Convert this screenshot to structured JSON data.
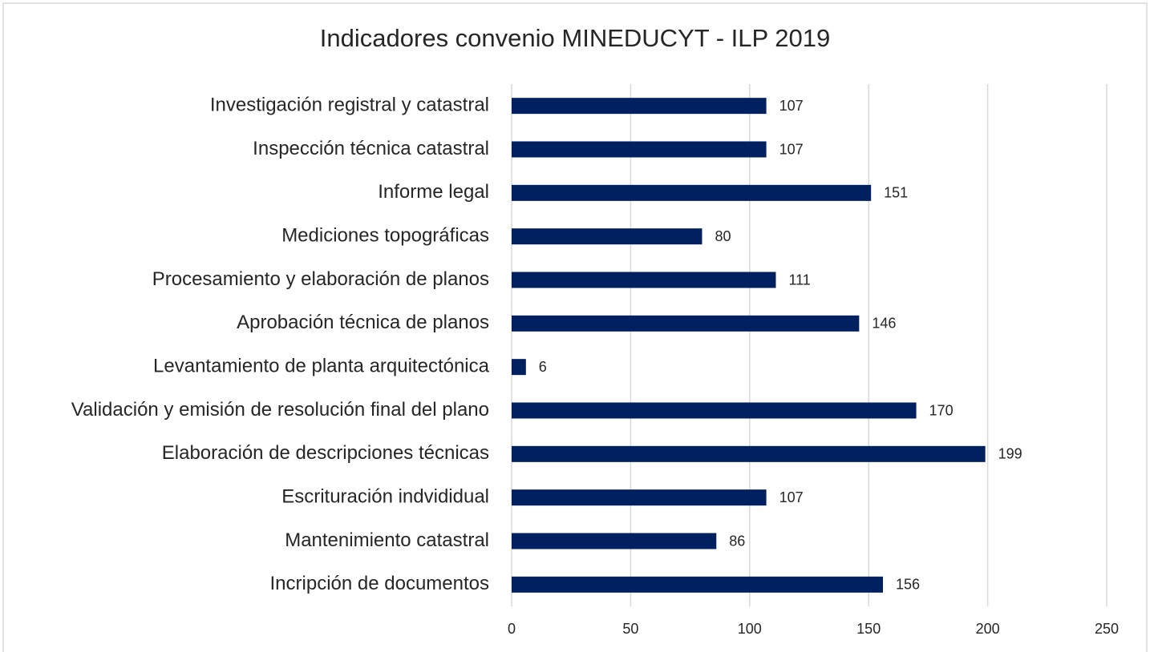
{
  "chart_data": {
    "type": "bar",
    "orientation": "horizontal",
    "title": "Indicadores convenio MINEDUCYT - ILP 2019",
    "categories": [
      "Investigación registral y catastral",
      "Inspección técnica catastral",
      "Informe legal",
      "Mediciones topográficas",
      "Procesamiento y elaboración de planos",
      "Aprobación técnica de planos",
      "Levantamiento de planta arquitectónica",
      "Validación y emisión de resolución final del plano",
      "Elaboración de descripciones técnicas",
      "Escrituración indvididual",
      "Mantenimiento catastral",
      "Incripción de documentos"
    ],
    "values": [
      107,
      107,
      151,
      80,
      111,
      146,
      6,
      170,
      199,
      107,
      86,
      156
    ],
    "color": "#002060",
    "xlim": [
      0,
      250
    ],
    "xticks": [
      0,
      50,
      100,
      150,
      200,
      250
    ],
    "grid": true
  }
}
